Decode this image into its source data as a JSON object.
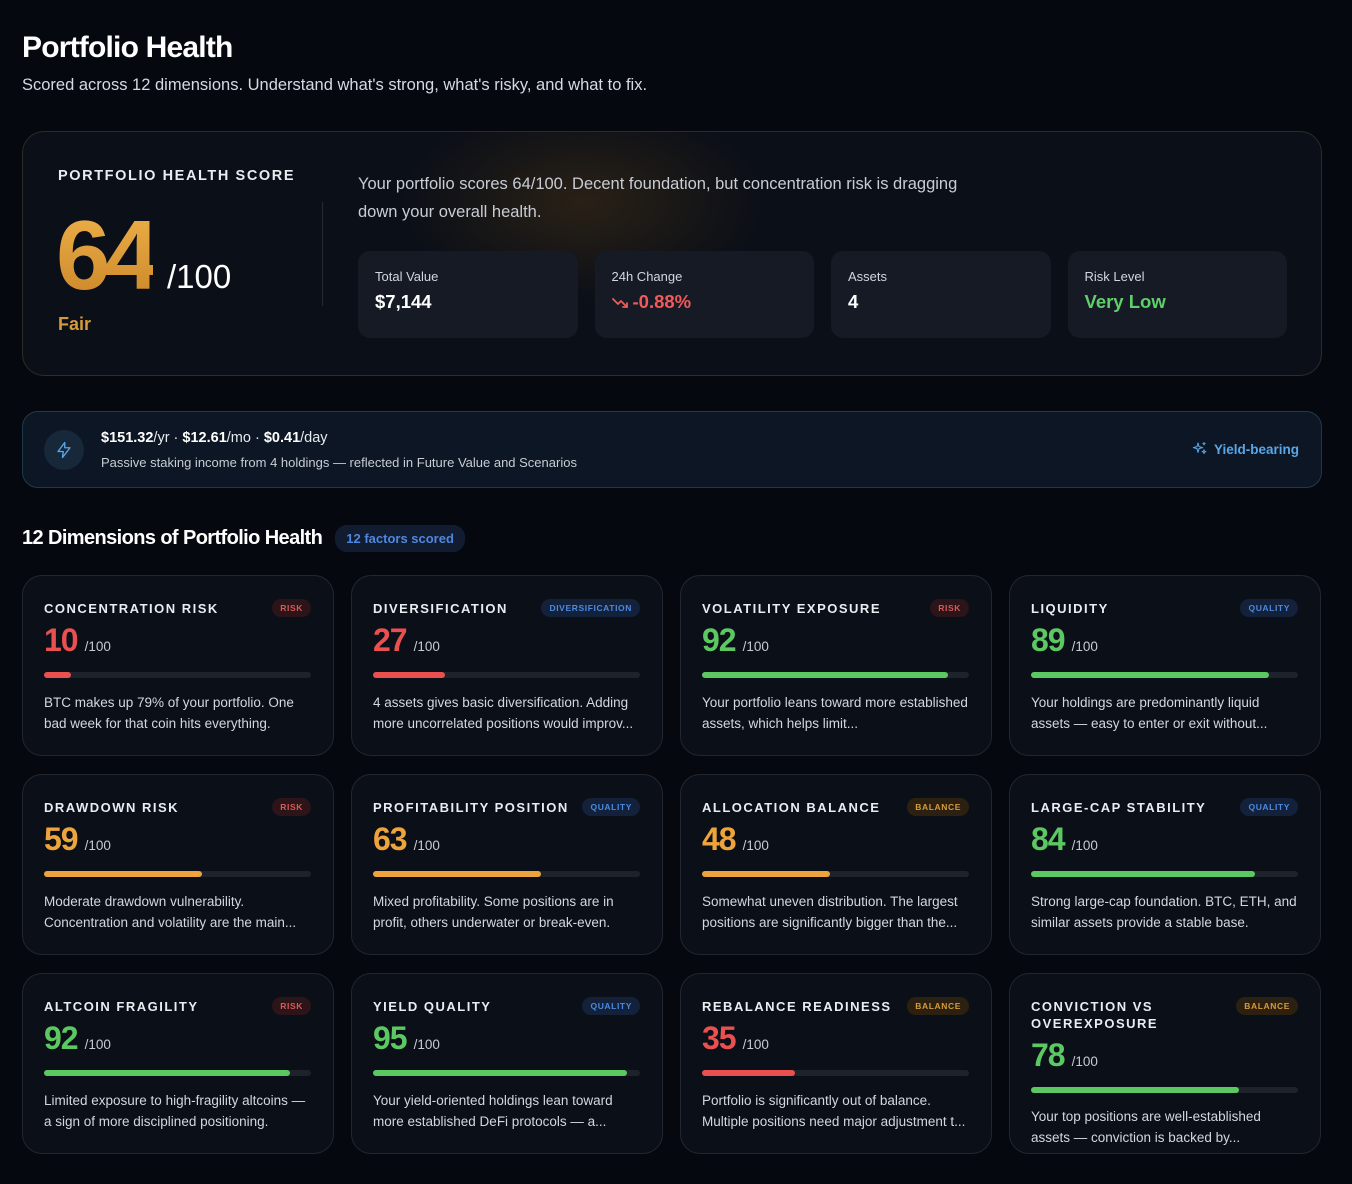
{
  "header": {
    "title": "Portfolio Health",
    "subtitle": "Scored across 12 dimensions. Understand what's strong, what's risky, and what to fix."
  },
  "hero": {
    "label": "PORTFOLIO HEALTH SCORE",
    "score": "64",
    "out_of": "/100",
    "rating": "Fair",
    "summary": "Your portfolio scores 64/100. Decent foundation, but concentration risk is dragging down your overall health.",
    "stats": [
      {
        "label": "Total Value",
        "value": "$7,144"
      },
      {
        "label": "24h Change",
        "value": "-0.88%"
      },
      {
        "label": "Assets",
        "value": "4"
      },
      {
        "label": "Risk Level",
        "value": "Very Low"
      }
    ]
  },
  "yield": {
    "yr": "$151.32",
    "yr_unit": "/yr · ",
    "mo": "$12.61",
    "mo_unit": "/mo · ",
    "day": "$0.41",
    "day_unit": "/day",
    "subtitle": "Passive staking income from 4 holdings — reflected in Future Value and Scenarios",
    "tag": "Yield-bearing"
  },
  "dimensions": {
    "title": "12 Dimensions of Portfolio Health",
    "badge": "12 factors scored",
    "out_of": "/100",
    "cards": [
      {
        "name": "CONCENTRATION RISK",
        "tag": "RISK",
        "score": "10",
        "value": 10,
        "desc": "BTC makes up 79% of your portfolio. One bad week for that coin hits everything."
      },
      {
        "name": "DIVERSIFICATION",
        "tag": "DIVERSIFICATION",
        "score": "27",
        "value": 27,
        "desc": "4 assets gives basic diversification. Adding more uncorrelated positions would improv..."
      },
      {
        "name": "VOLATILITY EXPOSURE",
        "tag": "RISK",
        "score": "92",
        "value": 92,
        "desc": "Your portfolio leans toward more established assets, which helps limit..."
      },
      {
        "name": "LIQUIDITY",
        "tag": "QUALITY",
        "score": "89",
        "value": 89,
        "desc": "Your holdings are predominantly liquid assets — easy to enter or exit without..."
      },
      {
        "name": "DRAWDOWN RISK",
        "tag": "RISK",
        "score": "59",
        "value": 59,
        "desc": "Moderate drawdown vulnerability. Concentration and volatility are the main..."
      },
      {
        "name": "PROFITABILITY POSITION",
        "tag": "QUALITY",
        "score": "63",
        "value": 63,
        "desc": "Mixed profitability. Some positions are in profit, others underwater or break-even."
      },
      {
        "name": "ALLOCATION BALANCE",
        "tag": "BALANCE",
        "score": "48",
        "value": 48,
        "desc": "Somewhat uneven distribution. The largest positions are significantly bigger than the..."
      },
      {
        "name": "LARGE-CAP STABILITY",
        "tag": "QUALITY",
        "score": "84",
        "value": 84,
        "desc": "Strong large-cap foundation. BTC, ETH, and similar assets provide a stable base."
      },
      {
        "name": "ALTCOIN FRAGILITY",
        "tag": "RISK",
        "score": "92",
        "value": 92,
        "desc": "Limited exposure to high-fragility altcoins — a sign of more disciplined positioning."
      },
      {
        "name": "YIELD QUALITY",
        "tag": "QUALITY",
        "score": "95",
        "value": 95,
        "desc": "Your yield-oriented holdings lean toward more established DeFi protocols — a..."
      },
      {
        "name": "REBALANCE READINESS",
        "tag": "BALANCE",
        "score": "35",
        "value": 35,
        "desc": "Portfolio is significantly out of balance. Multiple positions need major adjustment t..."
      },
      {
        "name": "CONVICTION VS OVEREXPOSURE",
        "tag": "BALANCE",
        "score": "78",
        "value": 78,
        "desc": "Your top positions are well-established assets — conviction is backed by..."
      }
    ]
  },
  "colors": {
    "red": "#ea5050",
    "orange": "#eea43c",
    "green": "#5cc862",
    "accent_blue": "#4d8ae0",
    "gold": "#d49a3c"
  }
}
